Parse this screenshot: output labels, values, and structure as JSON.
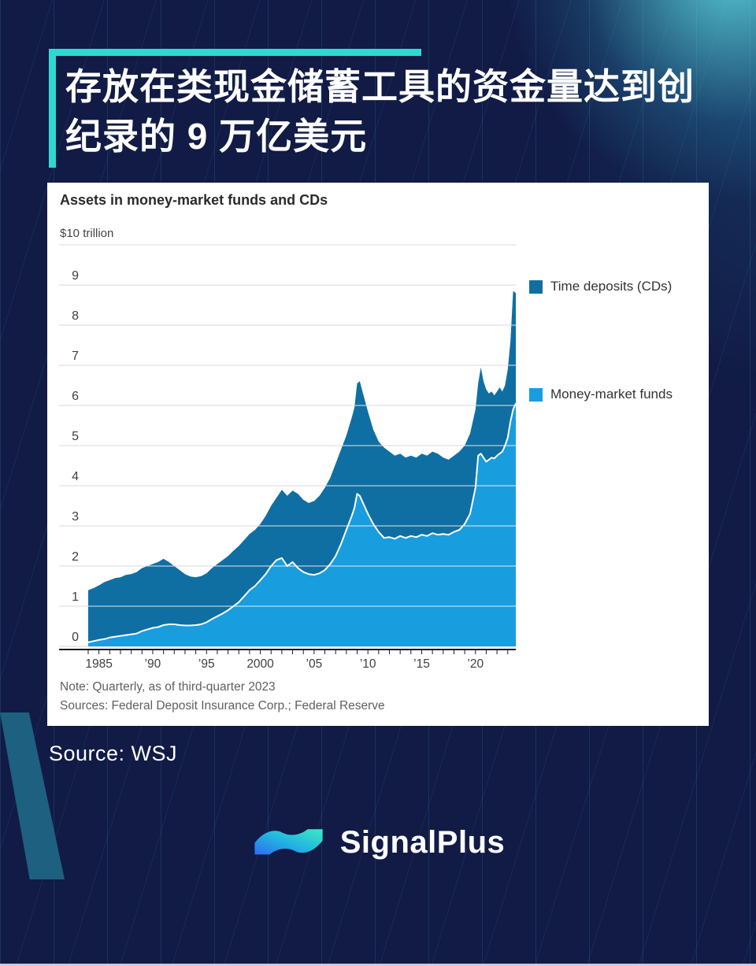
{
  "page": {
    "background_color": "#111B45",
    "accent_teal": "#2FD9D3"
  },
  "header": {
    "title_line1": "存放在类现金储蓄工具的资金量达到创",
    "title_line2": "纪录的 9 万亿美元"
  },
  "chart_card": {
    "title": "Assets in money-market funds and CDs",
    "unit_label": "$10 trillion",
    "legend": [
      {
        "label": "Time deposits (CDs)",
        "color": "#0F6FA3"
      },
      {
        "label": "Money-market funds",
        "color": "#189DDF"
      }
    ],
    "note_line1": "Note: Quarterly, as of third-quarter 2023",
    "note_line2": "Sources: Federal Deposit Insurance Corp.; Federal Reserve"
  },
  "chart_data": {
    "type": "area",
    "stacked": true,
    "title": "Assets in money-market funds and CDs",
    "unit": "$ trillion",
    "top_label": "$10 trillion",
    "ylim": [
      0,
      10
    ],
    "yticks": [
      0,
      1,
      2,
      3,
      4,
      5,
      6,
      7,
      8,
      9
    ],
    "xtick_years": [
      1985,
      1990,
      1995,
      2000,
      2005,
      2010,
      2015,
      2020
    ],
    "xtick_labels": [
      "1985",
      "’90",
      "’95",
      "2000",
      "’05",
      "’10",
      "’15",
      "’20"
    ],
    "x_range_years": [
      1984,
      2023.75
    ],
    "grid": true,
    "legend_position": "right",
    "divider_line_color": "#FFFFFF",
    "gridline_color": "#D9D9D9",
    "gridline_over_area_color": "rgba(255,255,255,0.85)",
    "axis_color": "#1A1A1A",
    "x_years": [
      1984,
      1984.5,
      1985,
      1985.5,
      1986,
      1986.5,
      1987,
      1987.5,
      1988,
      1988.5,
      1989,
      1989.5,
      1990,
      1990.5,
      1991,
      1991.5,
      1992,
      1992.5,
      1993,
      1993.5,
      1994,
      1994.5,
      1995,
      1995.5,
      1996,
      1996.5,
      1997,
      1997.5,
      1998,
      1998.5,
      1999,
      1999.5,
      2000,
      2000.5,
      2001,
      2001.5,
      2002,
      2002.5,
      2003,
      2003.5,
      2004,
      2004.5,
      2005,
      2005.5,
      2006,
      2006.5,
      2007,
      2007.5,
      2008,
      2008.5,
      2008.75,
      2009,
      2009.25,
      2009.5,
      2010,
      2010.5,
      2011,
      2011.5,
      2012,
      2012.5,
      2013,
      2013.5,
      2014,
      2014.5,
      2015,
      2015.5,
      2016,
      2016.5,
      2017,
      2017.5,
      2018,
      2018.5,
      2019,
      2019.5,
      2020,
      2020.25,
      2020.5,
      2020.75,
      2021,
      2021.25,
      2021.5,
      2021.75,
      2022,
      2022.25,
      2022.5,
      2022.75,
      2023,
      2023.25,
      2023.5,
      2023.75
    ],
    "series": [
      {
        "name": "Money-market funds",
        "color": "#189DDF",
        "values": [
          0.1,
          0.13,
          0.16,
          0.18,
          0.22,
          0.24,
          0.26,
          0.28,
          0.3,
          0.32,
          0.38,
          0.42,
          0.46,
          0.48,
          0.53,
          0.55,
          0.55,
          0.53,
          0.52,
          0.52,
          0.53,
          0.55,
          0.6,
          0.68,
          0.75,
          0.82,
          0.9,
          1.0,
          1.1,
          1.25,
          1.4,
          1.5,
          1.65,
          1.8,
          2.0,
          2.15,
          2.2,
          2.0,
          2.1,
          1.95,
          1.85,
          1.8,
          1.78,
          1.82,
          1.9,
          2.05,
          2.25,
          2.55,
          2.9,
          3.25,
          3.45,
          3.8,
          3.75,
          3.6,
          3.3,
          3.05,
          2.85,
          2.7,
          2.72,
          2.68,
          2.75,
          2.7,
          2.75,
          2.72,
          2.78,
          2.75,
          2.82,
          2.78,
          2.8,
          2.78,
          2.85,
          2.9,
          3.05,
          3.3,
          3.95,
          4.75,
          4.8,
          4.7,
          4.6,
          4.65,
          4.7,
          4.68,
          4.75,
          4.8,
          4.85,
          5.0,
          5.2,
          5.6,
          5.9,
          6.05
        ]
      },
      {
        "name": "Time deposits (CDs)",
        "color": "#0F6FA3",
        "values": [
          1.3,
          1.32,
          1.36,
          1.42,
          1.43,
          1.46,
          1.46,
          1.5,
          1.5,
          1.53,
          1.57,
          1.58,
          1.59,
          1.62,
          1.65,
          1.55,
          1.45,
          1.37,
          1.28,
          1.22,
          1.19,
          1.2,
          1.22,
          1.27,
          1.3,
          1.33,
          1.35,
          1.38,
          1.4,
          1.4,
          1.4,
          1.4,
          1.4,
          1.45,
          1.5,
          1.55,
          1.7,
          1.75,
          1.78,
          1.85,
          1.8,
          1.77,
          1.84,
          1.93,
          2.05,
          2.15,
          2.3,
          2.35,
          2.35,
          2.45,
          2.5,
          2.75,
          2.85,
          2.75,
          2.55,
          2.35,
          2.25,
          2.25,
          2.13,
          2.07,
          2.05,
          2.0,
          2.0,
          1.98,
          2.02,
          2.0,
          2.03,
          2.02,
          1.9,
          1.87,
          1.9,
          1.95,
          1.95,
          2.0,
          1.95,
          1.8,
          2.15,
          1.9,
          1.8,
          1.65,
          1.65,
          1.57,
          1.6,
          1.65,
          1.5,
          1.5,
          1.7,
          2.0,
          2.95,
          2.75
        ]
      }
    ]
  },
  "footer": {
    "source_label": "Source: WSJ",
    "brand": "SignalPlus"
  }
}
